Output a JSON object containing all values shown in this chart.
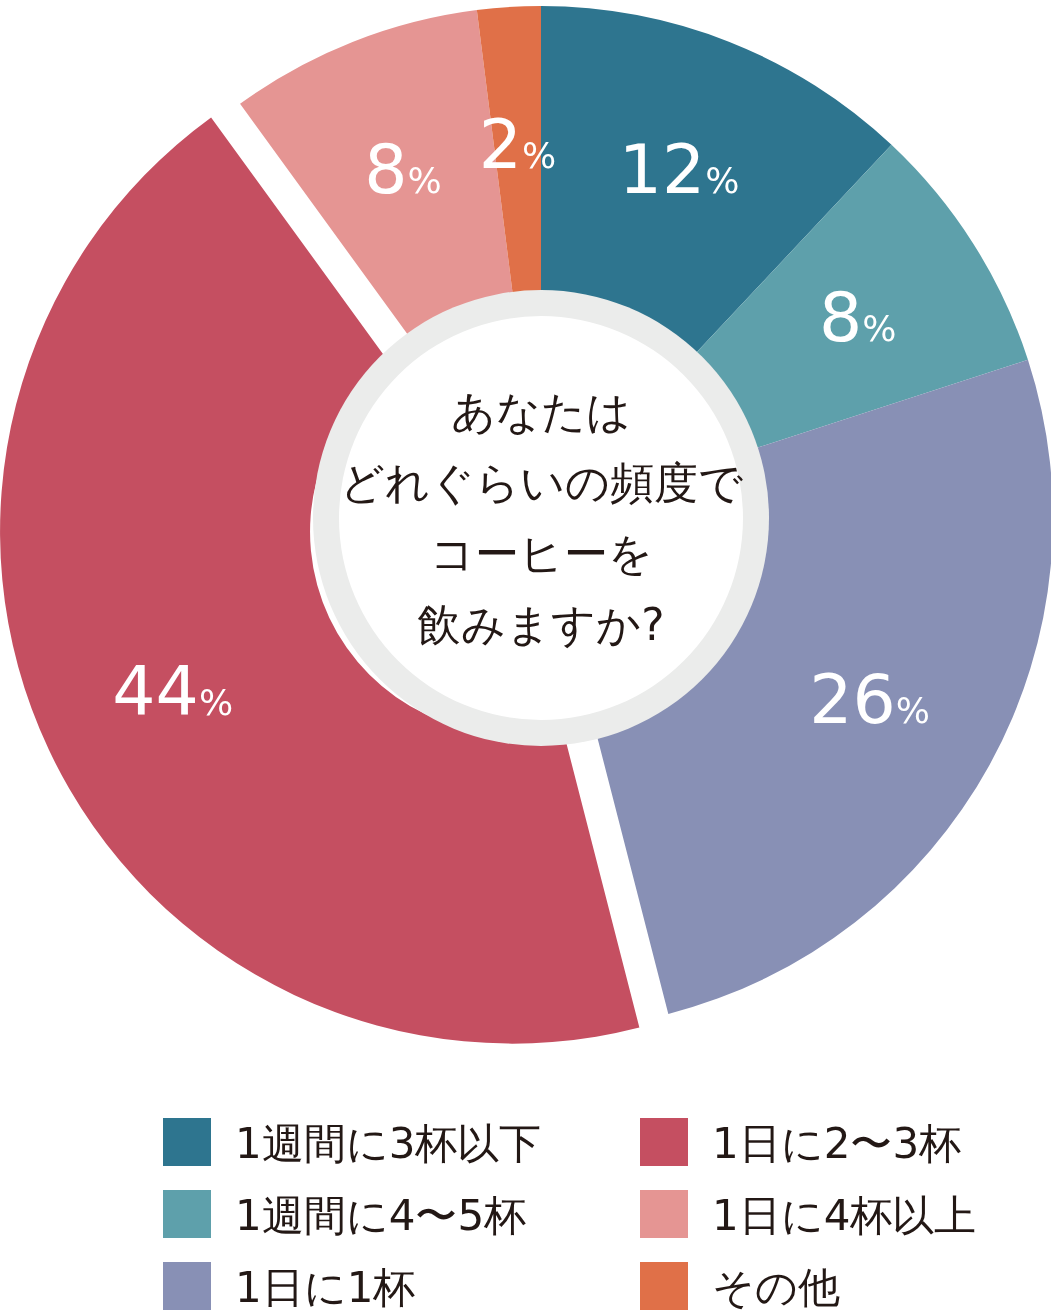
{
  "chart_data": {
    "type": "donut",
    "title": "あなたはどれぐらいの頻度でコーヒーを飲みますか?",
    "categories": [
      "1週間に3杯以下",
      "1週間に4〜5杯",
      "1日に1杯",
      "1日に2〜3杯",
      "1日に4杯以上",
      "その他"
    ],
    "values": [
      12,
      8,
      26,
      44,
      8,
      2
    ],
    "value_labels": [
      "12%",
      "8%",
      "26%",
      "44%",
      "8%",
      "2%"
    ],
    "colors": [
      "#2e758f",
      "#5ea0ab",
      "#8890b5",
      "#c54f61",
      "#e59593",
      "#e07048"
    ],
    "legend": "bottom"
  }
}
